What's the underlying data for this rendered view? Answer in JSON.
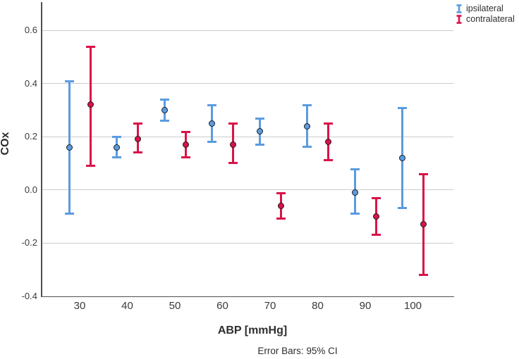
{
  "chart_data": {
    "type": "scatter",
    "subtype": "clustered-error-bar",
    "title": "",
    "xlabel": "ABP [mmHg]",
    "ylabel": "COx",
    "caption": "Error Bars: 95% CI",
    "x_categories": [
      30,
      40,
      50,
      60,
      70,
      80,
      90,
      100
    ],
    "x_tick_labels": [
      "30",
      "40",
      "50",
      "60",
      "70",
      "80",
      "90",
      "100"
    ],
    "y_ticks": [
      0.6,
      0.4,
      0.2,
      0.0,
      -0.2,
      -0.4
    ],
    "y_tick_labels": [
      "0.6",
      "0.4",
      "0.2",
      "0.0",
      "-0.2",
      "-0.4"
    ],
    "ylim": [
      -0.4,
      0.7
    ],
    "grid": "horizontal",
    "legend_position": "top-right",
    "error_bars": "95% CI",
    "series": [
      {
        "name": "ipsilateral",
        "color": "#5B9BE0",
        "means": [
          0.16,
          0.16,
          0.3,
          0.25,
          0.22,
          0.24,
          -0.01,
          0.12
        ],
        "ci_low": [
          -0.09,
          0.12,
          0.26,
          0.18,
          0.17,
          0.16,
          -0.09,
          -0.07
        ],
        "ci_high": [
          0.41,
          0.2,
          0.34,
          0.32,
          0.27,
          0.32,
          0.08,
          0.31
        ]
      },
      {
        "name": "contralateral",
        "color": "#D91348",
        "means": [
          0.32,
          0.19,
          0.17,
          0.17,
          -0.06,
          0.18,
          -0.1,
          -0.13
        ],
        "ci_low": [
          0.09,
          0.14,
          0.12,
          0.1,
          -0.11,
          0.11,
          -0.17,
          -0.32
        ],
        "ci_high": [
          0.54,
          0.25,
          0.22,
          0.25,
          -0.01,
          0.25,
          -0.03,
          0.06
        ]
      }
    ]
  }
}
